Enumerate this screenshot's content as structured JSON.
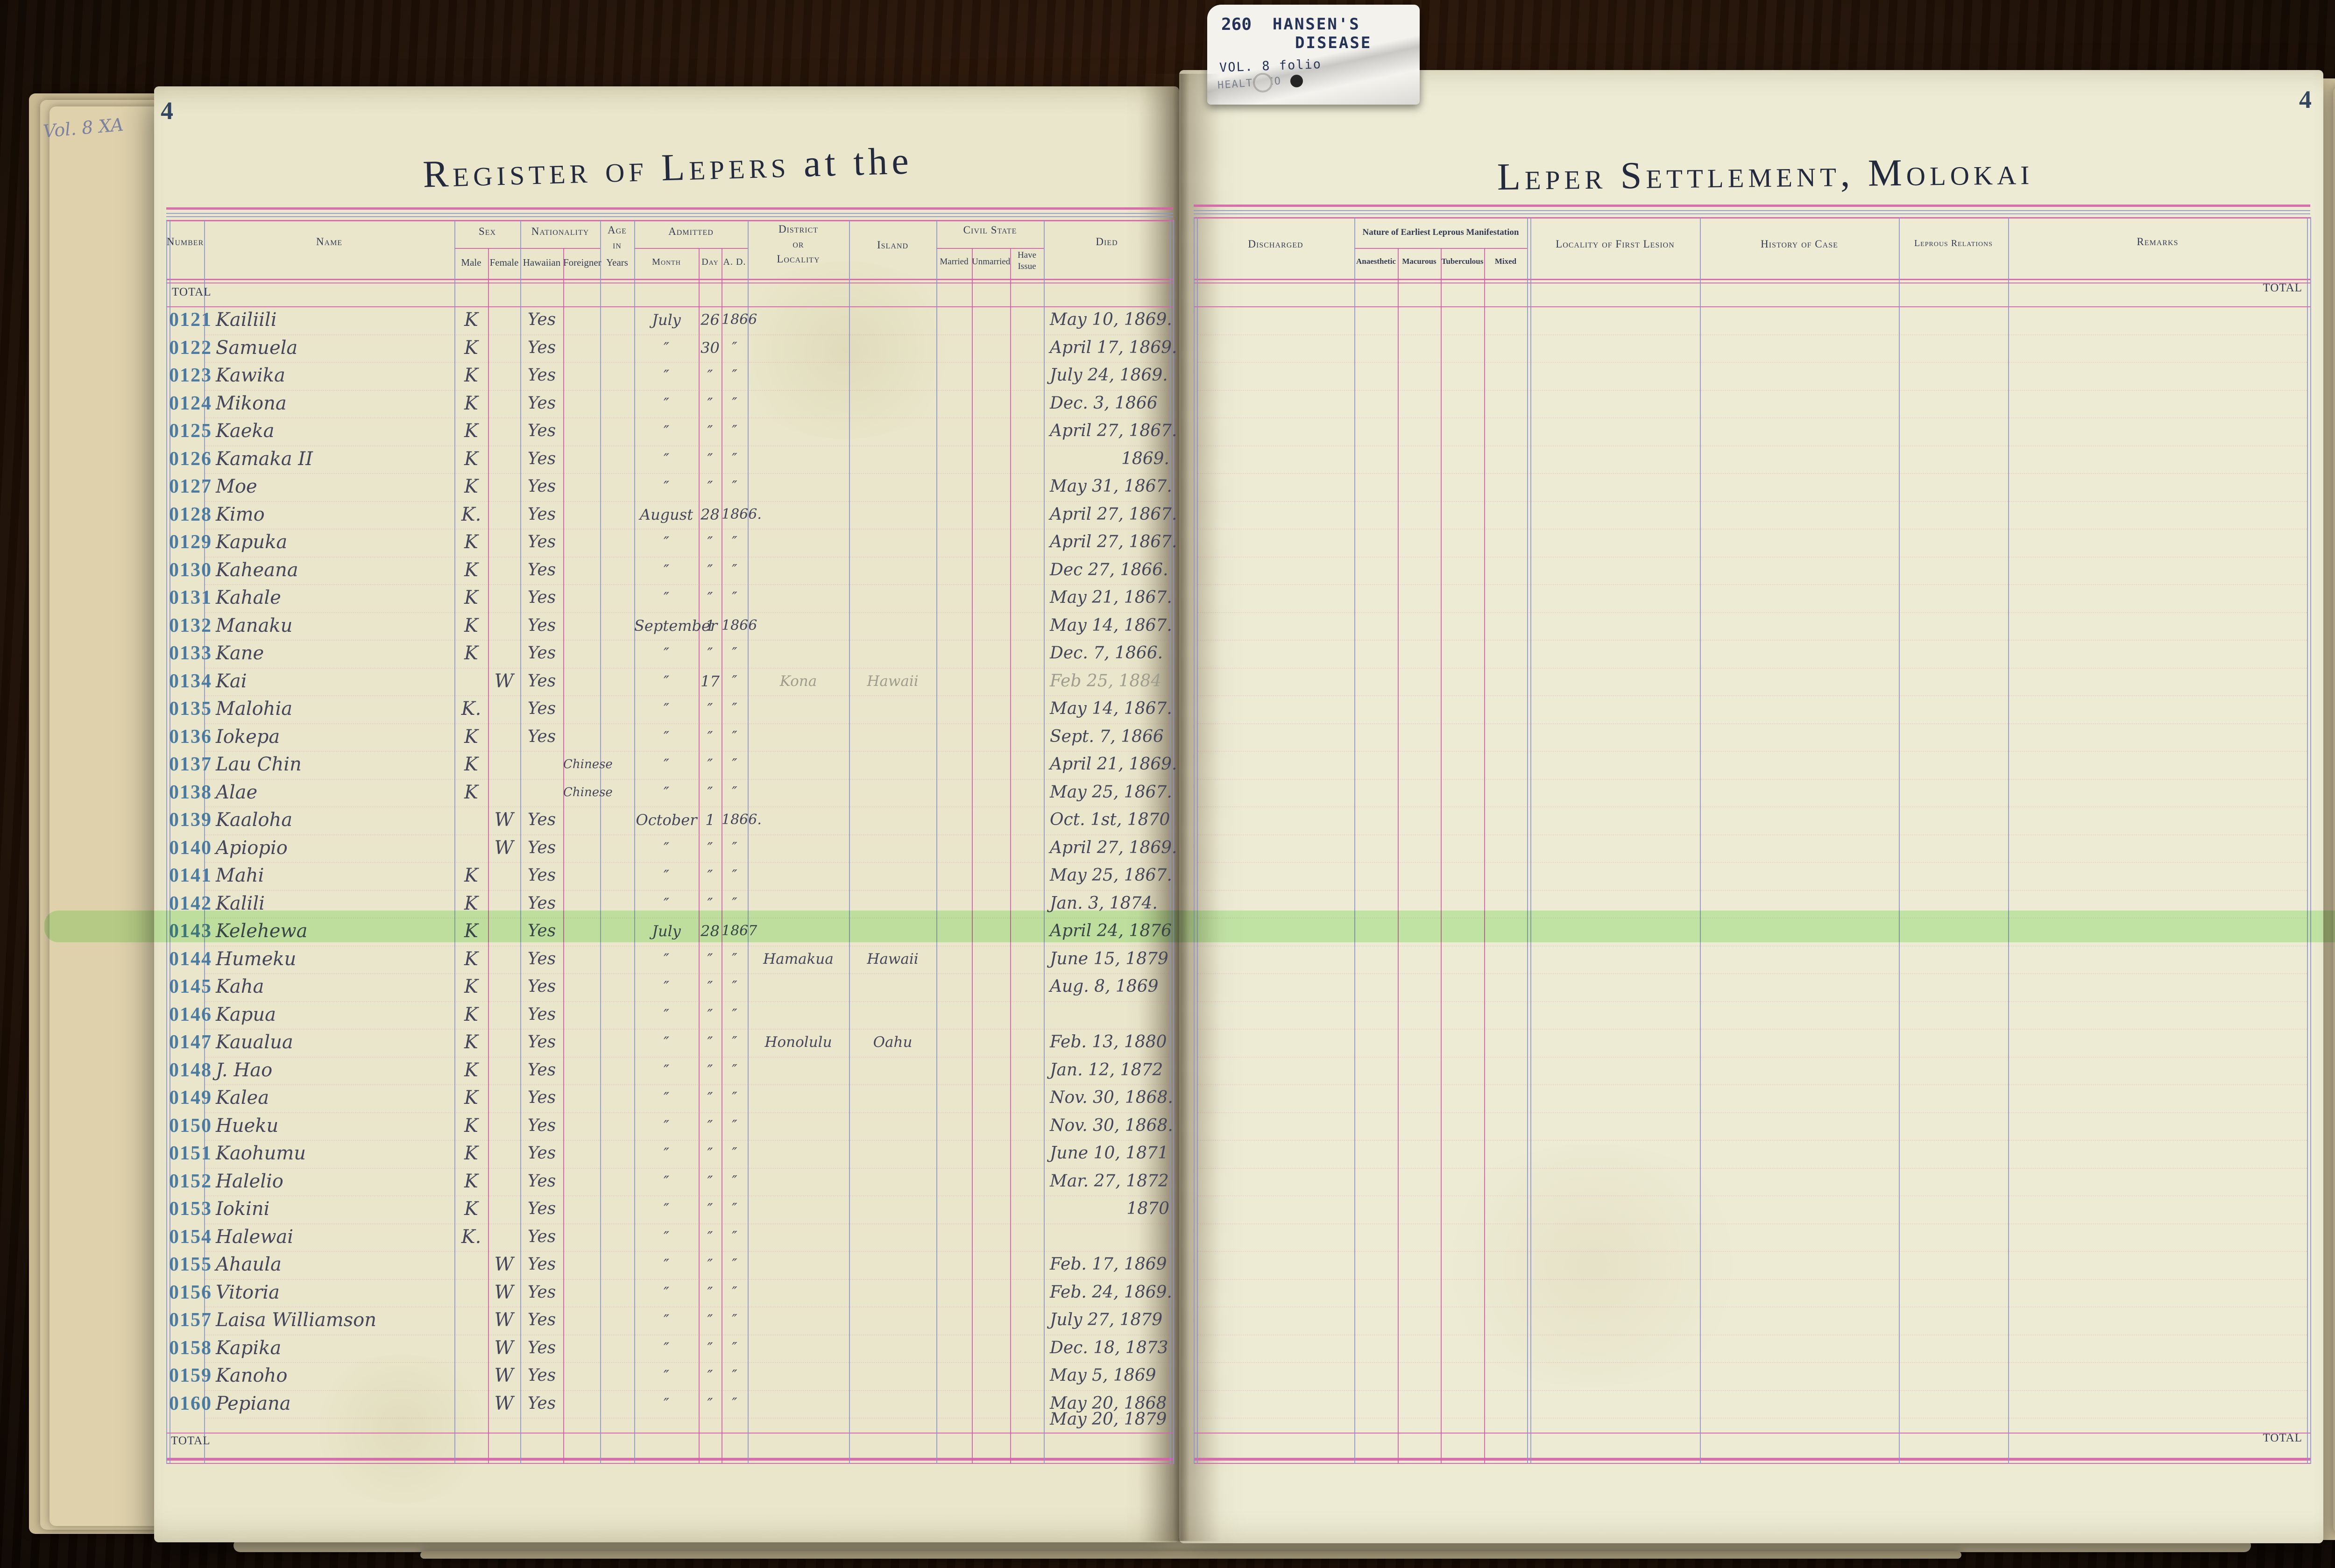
{
  "tab": {
    "catalog_number": "260",
    "subject_line1": "HANSEN'S",
    "subject_line2": "DISEASE",
    "volume_line": "VOL. 8 folio",
    "department_line": "HEALTH/CO"
  },
  "left_page": {
    "page_number": "4",
    "margin_note": "Vol. 8 XA",
    "title_main": "Register of Lepers",
    "title_suffix": "at the",
    "header": {
      "number": "Number",
      "name": "Name",
      "sex": "Sex",
      "sex_male": "Male",
      "sex_female": "Female",
      "nationality": "Nationality",
      "nat_hawaiian": "Hawaiian",
      "nat_foreigner": "Foreigner",
      "age_line1": "Age",
      "age_line2": "in",
      "age_line3": "Years",
      "admitted": "Admitted",
      "adm_month": "Month",
      "adm_day": "Day",
      "adm_ad": "A. D.",
      "district_line1": "District",
      "district_line2": "or",
      "district_line3": "Locality",
      "island": "Island",
      "civil_state": "Civil State",
      "cs_married": "Married",
      "cs_unmarried": "Unmarried",
      "cs_have_issue_1": "Have",
      "cs_have_issue_2": "Issue",
      "died": "Died"
    },
    "total_top": "TOTAL",
    "total_bottom": "TOTAL"
  },
  "right_page": {
    "page_number": "4",
    "title_main": "Leper Settlement, Molokai",
    "header": {
      "discharged": "Discharged",
      "manifestation": "Nature of Earliest Leprous Manifestation",
      "m_anaesthetic": "Anaesthetic",
      "m_macurous": "Macurous",
      "m_tuberculous": "Tuberculous",
      "m_mixed": "Mixed",
      "locality_first_lesion": "Locality of First Lesion",
      "history_of_case": "History of Case",
      "leprous_relations": "Leprous Relations",
      "remarks": "Remarks"
    },
    "total_top": "TOTAL",
    "total_bottom": "TOTAL"
  },
  "highlight_color": "#9ff08c",
  "ink_colors": {
    "register_number_blue": "#4b7ba1",
    "handwriting_ink": "#45465a",
    "pencil": "#9e9d8d",
    "rule_pink": "#d75ca6",
    "rule_blue": "#8d92cc"
  },
  "overflow_died": "May 20, 1879",
  "rows": [
    {
      "num": "0121",
      "name": "Kailiili",
      "sex": "K",
      "sex_col": "m",
      "hawaiian": "Yes",
      "foreigner": "",
      "month": "July",
      "day": "26",
      "ad": "1866",
      "district": "",
      "island": "",
      "died": "May 10, 1869.",
      "pencil": false,
      "highlight": false,
      "died_year_only": false
    },
    {
      "num": "0122",
      "name": "Samuela",
      "sex": "K",
      "sex_col": "m",
      "hawaiian": "Yes",
      "foreigner": "",
      "month": "″",
      "day": "30",
      "ad": "″",
      "district": "",
      "island": "",
      "died": "April 17, 1869.",
      "pencil": false,
      "highlight": false,
      "died_year_only": false
    },
    {
      "num": "0123",
      "name": "Kawika",
      "sex": "K",
      "sex_col": "m",
      "hawaiian": "Yes",
      "foreigner": "",
      "month": "″",
      "day": "″",
      "ad": "″",
      "district": "",
      "island": "",
      "died": "July 24, 1869.",
      "pencil": false,
      "highlight": false,
      "died_year_only": false
    },
    {
      "num": "0124",
      "name": "Mikona",
      "sex": "K",
      "sex_col": "m",
      "hawaiian": "Yes",
      "foreigner": "",
      "month": "″",
      "day": "″",
      "ad": "″",
      "district": "",
      "island": "",
      "died": "Dec. 3, 1866",
      "pencil": false,
      "highlight": false,
      "died_year_only": false
    },
    {
      "num": "0125",
      "name": "Kaeka",
      "sex": "K",
      "sex_col": "m",
      "hawaiian": "Yes",
      "foreigner": "",
      "month": "″",
      "day": "″",
      "ad": "″",
      "district": "",
      "island": "",
      "died": "April 27, 1867.",
      "pencil": false,
      "highlight": false,
      "died_year_only": false
    },
    {
      "num": "0126",
      "name": "Kamaka II",
      "sex": "K",
      "sex_col": "m",
      "hawaiian": "Yes",
      "foreigner": "",
      "month": "″",
      "day": "″",
      "ad": "″",
      "district": "",
      "island": "",
      "died": "1869.",
      "pencil": false,
      "highlight": false,
      "died_year_only": true
    },
    {
      "num": "0127",
      "name": "Moe",
      "sex": "K",
      "sex_col": "m",
      "hawaiian": "Yes",
      "foreigner": "",
      "month": "″",
      "day": "″",
      "ad": "″",
      "district": "",
      "island": "",
      "died": "May 31, 1867.",
      "pencil": false,
      "highlight": false,
      "died_year_only": false
    },
    {
      "num": "0128",
      "name": "Kimo",
      "sex": "K.",
      "sex_col": "m",
      "hawaiian": "Yes",
      "foreigner": "",
      "month": "August",
      "day": "28",
      "ad": "1866.",
      "district": "",
      "island": "",
      "died": "April 27, 1867.",
      "pencil": false,
      "highlight": false,
      "died_year_only": false
    },
    {
      "num": "0129",
      "name": "Kapuka",
      "sex": "K",
      "sex_col": "m",
      "hawaiian": "Yes",
      "foreigner": "",
      "month": "″",
      "day": "″",
      "ad": "″",
      "district": "",
      "island": "",
      "died": "April 27, 1867.",
      "pencil": false,
      "highlight": false,
      "died_year_only": false
    },
    {
      "num": "0130",
      "name": "Kaheana",
      "sex": "K",
      "sex_col": "m",
      "hawaiian": "Yes",
      "foreigner": "",
      "month": "″",
      "day": "″",
      "ad": "″",
      "district": "",
      "island": "",
      "died": "Dec 27, 1866.",
      "pencil": false,
      "highlight": false,
      "died_year_only": false
    },
    {
      "num": "0131",
      "name": "Kahale",
      "sex": "K",
      "sex_col": "m",
      "hawaiian": "Yes",
      "foreigner": "",
      "month": "″",
      "day": "″",
      "ad": "″",
      "district": "",
      "island": "",
      "died": "May 21, 1867.",
      "pencil": false,
      "highlight": false,
      "died_year_only": false
    },
    {
      "num": "0132",
      "name": "Manaku",
      "sex": "K",
      "sex_col": "m",
      "hawaiian": "Yes",
      "foreigner": "",
      "month": "September",
      "day": "1",
      "ad": "1866",
      "district": "",
      "island": "",
      "died": "May 14, 1867.",
      "pencil": false,
      "highlight": false,
      "died_year_only": false
    },
    {
      "num": "0133",
      "name": "Kane",
      "sex": "K",
      "sex_col": "m",
      "hawaiian": "Yes",
      "foreigner": "",
      "month": "″",
      "day": "″",
      "ad": "″",
      "district": "",
      "island": "",
      "died": "Dec. 7, 1866.",
      "pencil": false,
      "highlight": false,
      "died_year_only": false
    },
    {
      "num": "0134",
      "name": "Kai",
      "sex": "W",
      "sex_col": "f",
      "hawaiian": "Yes",
      "foreigner": "",
      "month": "″",
      "day": "17",
      "ad": "″",
      "district": "Kona",
      "island": "Hawaii",
      "died": "Feb 25, 1884",
      "pencil": true,
      "highlight": false,
      "died_year_only": false
    },
    {
      "num": "0135",
      "name": "Malohia",
      "sex": "K.",
      "sex_col": "m",
      "hawaiian": "Yes",
      "foreigner": "",
      "month": "″",
      "day": "″",
      "ad": "″",
      "district": "",
      "island": "",
      "died": "May 14, 1867.",
      "pencil": false,
      "highlight": false,
      "died_year_only": false
    },
    {
      "num": "0136",
      "name": "Iokepa",
      "sex": "K",
      "sex_col": "m",
      "hawaiian": "Yes",
      "foreigner": "",
      "month": "″",
      "day": "″",
      "ad": "″",
      "district": "",
      "island": "",
      "died": "Sept. 7, 1866",
      "pencil": false,
      "highlight": false,
      "died_year_only": false
    },
    {
      "num": "0137",
      "name": "Lau Chin",
      "sex": "K",
      "sex_col": "m",
      "hawaiian": "",
      "foreigner": "Chinese",
      "month": "″",
      "day": "″",
      "ad": "″",
      "district": "",
      "island": "",
      "died": "April 21, 1869.",
      "pencil": false,
      "highlight": false,
      "died_year_only": false
    },
    {
      "num": "0138",
      "name": "Alae",
      "sex": "K",
      "sex_col": "m",
      "hawaiian": "",
      "foreigner": "Chinese",
      "month": "″",
      "day": "″",
      "ad": "″",
      "district": "",
      "island": "",
      "died": "May 25, 1867.",
      "pencil": false,
      "highlight": false,
      "died_year_only": false
    },
    {
      "num": "0139",
      "name": "Kaaloha",
      "sex": "W",
      "sex_col": "f",
      "hawaiian": "Yes",
      "foreigner": "",
      "month": "October",
      "day": "1",
      "ad": "1866.",
      "district": "",
      "island": "",
      "died": "Oct. 1st, 1870",
      "pencil": false,
      "highlight": false,
      "died_year_only": false
    },
    {
      "num": "0140",
      "name": "Apiopio",
      "sex": "W",
      "sex_col": "f",
      "hawaiian": "Yes",
      "foreigner": "",
      "month": "″",
      "day": "″",
      "ad": "″",
      "district": "",
      "island": "",
      "died": "April 27, 1869.",
      "pencil": false,
      "highlight": false,
      "died_year_only": false
    },
    {
      "num": "0141",
      "name": "Mahi",
      "sex": "K",
      "sex_col": "m",
      "hawaiian": "Yes",
      "foreigner": "",
      "month": "″",
      "day": "″",
      "ad": "″",
      "district": "",
      "island": "",
      "died": "May 25, 1867.",
      "pencil": false,
      "highlight": false,
      "died_year_only": false
    },
    {
      "num": "0142",
      "name": "Kalili",
      "sex": "K",
      "sex_col": "m",
      "hawaiian": "Yes",
      "foreigner": "",
      "month": "″",
      "day": "″",
      "ad": "″",
      "district": "",
      "island": "",
      "died": "Jan. 3, 1874.",
      "pencil": false,
      "highlight": false,
      "died_year_only": false
    },
    {
      "num": "0143",
      "name": "Kelehewa",
      "sex": "K",
      "sex_col": "m",
      "hawaiian": "Yes",
      "foreigner": "",
      "month": "July",
      "day": "28",
      "ad": "1867",
      "district": "",
      "island": "",
      "died": "April 24, 1876",
      "pencil": false,
      "highlight": true,
      "died_year_only": false
    },
    {
      "num": "0144",
      "name": "Humeku",
      "sex": "K",
      "sex_col": "m",
      "hawaiian": "Yes",
      "foreigner": "",
      "month": "″",
      "day": "″",
      "ad": "″",
      "district": "Hamakua",
      "island": "Hawaii",
      "died": "June 15, 1879",
      "pencil": false,
      "highlight": false,
      "died_year_only": false
    },
    {
      "num": "0145",
      "name": "Kaha",
      "sex": "K",
      "sex_col": "m",
      "hawaiian": "Yes",
      "foreigner": "",
      "month": "″",
      "day": "″",
      "ad": "″",
      "district": "",
      "island": "",
      "died": "Aug. 8, 1869",
      "pencil": false,
      "highlight": false,
      "died_year_only": false
    },
    {
      "num": "0146",
      "name": "Kapua",
      "sex": "K",
      "sex_col": "m",
      "hawaiian": "Yes",
      "foreigner": "",
      "month": "″",
      "day": "″",
      "ad": "″",
      "district": "",
      "island": "",
      "died": "",
      "pencil": false,
      "highlight": false,
      "died_year_only": false
    },
    {
      "num": "0147",
      "name": "Kaualua",
      "sex": "K",
      "sex_col": "m",
      "hawaiian": "Yes",
      "foreigner": "",
      "month": "″",
      "day": "″",
      "ad": "″",
      "district": "Honolulu",
      "island": "Oahu",
      "died": "Feb. 13, 1880",
      "pencil": false,
      "highlight": false,
      "died_year_only": false
    },
    {
      "num": "0148",
      "name": "J. Hao",
      "sex": "K",
      "sex_col": "m",
      "hawaiian": "Yes",
      "foreigner": "",
      "month": "″",
      "day": "″",
      "ad": "″",
      "district": "",
      "island": "",
      "died": "Jan. 12, 1872",
      "pencil": false,
      "highlight": false,
      "died_year_only": false
    },
    {
      "num": "0149",
      "name": "Kalea",
      "sex": "K",
      "sex_col": "m",
      "hawaiian": "Yes",
      "foreigner": "",
      "month": "″",
      "day": "″",
      "ad": "″",
      "district": "",
      "island": "",
      "died": "Nov. 30, 1868.",
      "pencil": false,
      "highlight": false,
      "died_year_only": false
    },
    {
      "num": "0150",
      "name": "Hueku",
      "sex": "K",
      "sex_col": "m",
      "hawaiian": "Yes",
      "foreigner": "",
      "month": "″",
      "day": "″",
      "ad": "″",
      "district": "",
      "island": "",
      "died": "Nov. 30, 1868.",
      "pencil": false,
      "highlight": false,
      "died_year_only": false
    },
    {
      "num": "0151",
      "name": "Kaohumu",
      "sex": "K",
      "sex_col": "m",
      "hawaiian": "Yes",
      "foreigner": "",
      "month": "″",
      "day": "″",
      "ad": "″",
      "district": "",
      "island": "",
      "died": "June 10, 1871",
      "pencil": false,
      "highlight": false,
      "died_year_only": false
    },
    {
      "num": "0152",
      "name": "Halelio",
      "sex": "K",
      "sex_col": "m",
      "hawaiian": "Yes",
      "foreigner": "",
      "month": "″",
      "day": "″",
      "ad": "″",
      "district": "",
      "island": "",
      "died": "Mar. 27, 1872",
      "pencil": false,
      "highlight": false,
      "died_year_only": false
    },
    {
      "num": "0153",
      "name": "Iokini",
      "sex": "K",
      "sex_col": "m",
      "hawaiian": "Yes",
      "foreigner": "",
      "month": "″",
      "day": "″",
      "ad": "″",
      "district": "",
      "island": "",
      "died": "1870",
      "pencil": false,
      "highlight": false,
      "died_year_only": true
    },
    {
      "num": "0154",
      "name": "Halewai",
      "sex": "K.",
      "sex_col": "m",
      "hawaiian": "Yes",
      "foreigner": "",
      "month": "″",
      "day": "″",
      "ad": "″",
      "district": "",
      "island": "",
      "died": "",
      "pencil": false,
      "highlight": false,
      "died_year_only": false
    },
    {
      "num": "0155",
      "name": "Ahaula",
      "sex": "W",
      "sex_col": "f",
      "hawaiian": "Yes",
      "foreigner": "",
      "month": "″",
      "day": "″",
      "ad": "″",
      "district": "",
      "island": "",
      "died": "Feb. 17, 1869",
      "pencil": false,
      "highlight": false,
      "died_year_only": false
    },
    {
      "num": "0156",
      "name": "Vitoria",
      "sex": "W",
      "sex_col": "f",
      "hawaiian": "Yes",
      "foreigner": "",
      "month": "″",
      "day": "″",
      "ad": "″",
      "district": "",
      "island": "",
      "died": "Feb. 24, 1869.",
      "pencil": false,
      "highlight": false,
      "died_year_only": false
    },
    {
      "num": "0157",
      "name": "Laisa Williamson",
      "sex": "W",
      "sex_col": "f",
      "hawaiian": "Yes",
      "foreigner": "",
      "month": "″",
      "day": "″",
      "ad": "″",
      "district": "",
      "island": "",
      "died": "July 27, 1879",
      "pencil": false,
      "highlight": false,
      "died_year_only": false
    },
    {
      "num": "0158",
      "name": "Kapika",
      "sex": "W",
      "sex_col": "f",
      "hawaiian": "Yes",
      "foreigner": "",
      "month": "″",
      "day": "″",
      "ad": "″",
      "district": "",
      "island": "",
      "died": "Dec. 18, 1873",
      "pencil": false,
      "highlight": false,
      "died_year_only": false
    },
    {
      "num": "0159",
      "name": "Kanoho",
      "sex": "W",
      "sex_col": "f",
      "hawaiian": "Yes",
      "foreigner": "",
      "month": "″",
      "day": "″",
      "ad": "″",
      "district": "",
      "island": "",
      "died": "May 5, 1869",
      "pencil": false,
      "highlight": false,
      "died_year_only": false
    },
    {
      "num": "0160",
      "name": "Pepiana",
      "sex": "W",
      "sex_col": "f",
      "hawaiian": "Yes",
      "foreigner": "",
      "month": "″",
      "day": "″",
      "ad": "″",
      "district": "",
      "island": "",
      "died": "May 20, 1868",
      "pencil": false,
      "highlight": false,
      "died_year_only": false
    }
  ]
}
